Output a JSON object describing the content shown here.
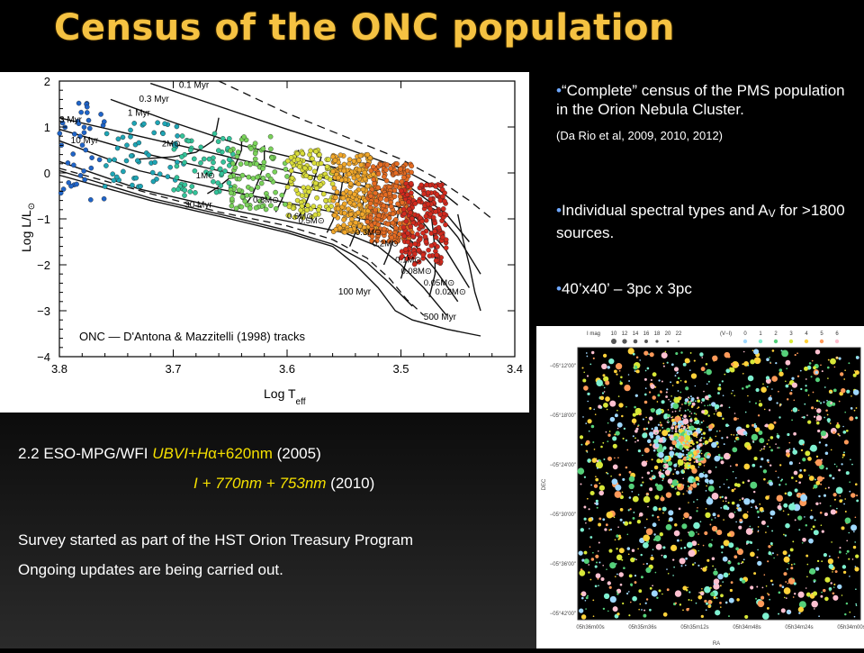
{
  "slide": {
    "title": "Census of the ONC population",
    "bullets": [
      {
        "text": "“Complete” census of the PMS population in the Orion Nebula Cluster.",
        "citation": "(Da Rio et al, 2009, 2010, 2012)"
      },
      {
        "text_pre": "Individual spectral types and A",
        "text_sub": "V",
        "text_post": " for >1800 sources."
      },
      {
        "text": "40’x40’ – 3pc x 3pc"
      }
    ],
    "obs_line1_pre": "2.2 ESO-MPG/WFI ",
    "obs_line1_bands": "UBVI+H",
    "obs_line1_alpha": "α",
    "obs_line1_filter": "+620nm",
    "obs_line1_year": "   (2005)",
    "obs_line2_bands": "I + 770nm + 753nm",
    "obs_line2_year": " (2010)",
    "survey_line1": "Survey started as part of the HST Orion Treasury Program",
    "survey_line2": "Ongoing updates are being carried out."
  },
  "chart_data": [
    {
      "type": "scatter",
      "title": "",
      "xlabel": "Log T",
      "xlabel_sub": "eff",
      "ylabel_pre": "Log L/L",
      "ylabel_sun": "⊙",
      "xlim": [
        3.8,
        3.4
      ],
      "ylim": [
        -4,
        2
      ],
      "xticks": [
        "3.8",
        "3.7",
        "3.6",
        "3.5",
        "3.4"
      ],
      "yticks": [
        "2",
        "1",
        "0",
        "−1",
        "−2",
        "−3",
        "−4"
      ],
      "annotation": "ONC — D'Antona & Mazzitelli (1998) tracks",
      "isochrone_labels": [
        "0.1 Myr",
        "0.3 Myr",
        "1 Myr",
        "3 Myr",
        "10 Myr",
        "30 Myr",
        "100 Myr",
        "500 Myr"
      ],
      "mass_labels": [
        "2M⊙",
        "1M⊙",
        "0.8M⊙",
        "0.6M⊙",
        "0.5M⊙",
        "0.3M⊙",
        "0.2M⊙",
        "0.1M⊙",
        "0.08M⊙",
        "0.05M⊙",
        "0.02M⊙"
      ],
      "isochrones": [
        {
          "name": "0.1 Myr",
          "points": [
            [
              3.72,
              1.95
            ],
            [
              3.66,
              1.45
            ],
            [
              3.6,
              0.95
            ],
            [
              3.55,
              0.55
            ],
            [
              3.5,
              0.1
            ],
            [
              3.47,
              -0.3
            ],
            [
              3.45,
              -0.7
            ]
          ]
        },
        {
          "name": "0.3 Myr",
          "points": [
            [
              3.755,
              1.6
            ],
            [
              3.7,
              1.1
            ],
            [
              3.64,
              0.6
            ],
            [
              3.58,
              0.25
            ],
            [
              3.53,
              -0.05
            ],
            [
              3.49,
              -0.35
            ],
            [
              3.46,
              -0.9
            ],
            [
              3.44,
              -1.5
            ]
          ]
        },
        {
          "name": "1 Myr",
          "points": [
            [
              3.8,
              1.2
            ],
            [
              3.73,
              0.8
            ],
            [
              3.66,
              0.4
            ],
            [
              3.6,
              0.05
            ],
            [
              3.55,
              -0.2
            ],
            [
              3.5,
              -0.45
            ],
            [
              3.47,
              -0.8
            ],
            [
              3.45,
              -1.4
            ],
            [
              3.43,
              -2.2
            ]
          ]
        },
        {
          "name": "3 Myr",
          "points": [
            [
              3.8,
              0.95
            ],
            [
              3.73,
              0.45
            ],
            [
              3.66,
              0.05
            ],
            [
              3.6,
              -0.25
            ],
            [
              3.55,
              -0.5
            ],
            [
              3.5,
              -0.75
            ],
            [
              3.48,
              -1.1
            ],
            [
              3.46,
              -1.7
            ],
            [
              3.44,
              -2.5
            ]
          ]
        },
        {
          "name": "10 Myr",
          "points": [
            [
              3.8,
              0.7
            ],
            [
              3.73,
              0.05
            ],
            [
              3.66,
              -0.35
            ],
            [
              3.6,
              -0.65
            ],
            [
              3.55,
              -0.9
            ],
            [
              3.51,
              -1.15
            ],
            [
              3.49,
              -1.5
            ],
            [
              3.47,
              -2.1
            ],
            [
              3.45,
              -2.8
            ]
          ]
        },
        {
          "name": "30 Myr",
          "points": [
            [
              3.8,
              0.25
            ],
            [
              3.73,
              -0.35
            ],
            [
              3.66,
              -0.75
            ],
            [
              3.6,
              -1.05
            ],
            [
              3.55,
              -1.3
            ],
            [
              3.52,
              -1.6
            ],
            [
              3.5,
              -2.0
            ],
            [
              3.48,
              -2.5
            ],
            [
              3.46,
              -3.1
            ]
          ]
        },
        {
          "name": "100 Myr",
          "points": [
            [
              3.8,
              0.05
            ],
            [
              3.72,
              -0.55
            ],
            [
              3.65,
              -0.95
            ],
            [
              3.6,
              -1.25
            ],
            [
              3.56,
              -1.55
            ],
            [
              3.53,
              -1.95
            ],
            [
              3.51,
              -2.4
            ],
            [
              3.49,
              -2.9
            ]
          ]
        },
        {
          "name": "500 Myr",
          "points": [
            [
              3.8,
              -0.05
            ],
            [
              3.72,
              -0.6
            ],
            [
              3.65,
              -1.0
            ],
            [
              3.6,
              -1.3
            ],
            [
              3.56,
              -1.6
            ],
            [
              3.54,
              -2.0
            ],
            [
              3.52,
              -2.5
            ],
            [
              3.505,
              -3.0
            ],
            [
              3.49,
              -3.2
            ],
            [
              3.46,
              -3.4
            ],
            [
              3.43,
              -3.55
            ]
          ]
        }
      ],
      "tracks": [
        {
          "mass": "2M⊙",
          "points": [
            [
              3.66,
              1.2
            ],
            [
              3.662,
              0.95
            ],
            [
              3.665,
              0.7
            ],
            [
              3.68,
              0.45
            ],
            [
              3.7,
              0.35
            ],
            [
              3.73,
              0.3
            ]
          ]
        },
        {
          "mass": "1M⊙",
          "points": [
            [
              3.64,
              0.8
            ],
            [
              3.64,
              0.5
            ],
            [
              3.645,
              0.2
            ],
            [
              3.65,
              -0.1
            ],
            [
              3.66,
              -0.3
            ],
            [
              3.67,
              -0.45
            ]
          ]
        },
        {
          "mass": "0.8M⊙",
          "points": [
            [
              3.62,
              0.6
            ],
            [
              3.62,
              0.2
            ],
            [
              3.625,
              -0.15
            ],
            [
              3.63,
              -0.45
            ],
            [
              3.635,
              -0.65
            ]
          ]
        },
        {
          "mass": "0.6M⊙",
          "points": [
            [
              3.59,
              0.5
            ],
            [
              3.595,
              0.1
            ],
            [
              3.6,
              -0.3
            ],
            [
              3.605,
              -0.6
            ],
            [
              3.61,
              -0.85
            ]
          ]
        },
        {
          "mass": "0.5M⊙",
          "points": [
            [
              3.57,
              0.35
            ],
            [
              3.575,
              -0.05
            ],
            [
              3.58,
              -0.45
            ],
            [
              3.585,
              -0.75
            ],
            [
              3.59,
              -0.95
            ]
          ]
        },
        {
          "mass": "0.3M⊙",
          "points": [
            [
              3.55,
              0.1
            ],
            [
              3.552,
              -0.3
            ],
            [
              3.555,
              -0.7
            ],
            [
              3.56,
              -1.05
            ],
            [
              3.565,
              -1.3
            ]
          ]
        },
        {
          "mass": "0.2M⊙",
          "points": [
            [
              3.53,
              -0.05
            ],
            [
              3.532,
              -0.5
            ],
            [
              3.535,
              -0.9
            ],
            [
              3.54,
              -1.3
            ],
            [
              3.545,
              -1.6
            ]
          ]
        },
        {
          "mass": "0.1M⊙",
          "points": [
            [
              3.5,
              -0.3
            ],
            [
              3.502,
              -0.8
            ],
            [
              3.505,
              -1.3
            ],
            [
              3.51,
              -1.7
            ],
            [
              3.515,
              -2.0
            ]
          ]
        },
        {
          "mass": "0.08M⊙",
          "points": [
            [
              3.49,
              -0.45
            ],
            [
              3.49,
              -1.0
            ],
            [
              3.492,
              -1.5
            ],
            [
              3.495,
              -1.9
            ],
            [
              3.5,
              -2.3
            ]
          ]
        },
        {
          "mass": "0.05M⊙",
          "points": [
            [
              3.475,
              -0.6
            ],
            [
              3.472,
              -1.2
            ],
            [
              3.47,
              -1.7
            ],
            [
              3.47,
              -2.2
            ],
            [
              3.475,
              -2.7
            ]
          ]
        },
        {
          "mass": "0.02M⊙",
          "points": [
            [
              3.45,
              -0.9
            ],
            [
              3.445,
              -1.5
            ],
            [
              3.44,
              -2.0
            ],
            [
              3.435,
              -2.6
            ],
            [
              3.43,
              -3.0
            ]
          ]
        }
      ],
      "zams_dashed": [
        [
          3.8,
          0.1
        ],
        [
          3.72,
          -0.45
        ],
        [
          3.66,
          -0.85
        ],
        [
          3.6,
          -1.15
        ],
        [
          3.56,
          -1.45
        ],
        [
          3.53,
          -1.85
        ],
        [
          3.51,
          -2.3
        ],
        [
          3.495,
          -2.75
        ],
        [
          3.48,
          -3.1
        ]
      ],
      "birthline_dashed": [
        [
          3.66,
          2.0
        ],
        [
          3.6,
          1.3
        ],
        [
          3.55,
          0.8
        ],
        [
          3.5,
          0.3
        ],
        [
          3.47,
          -0.1
        ],
        [
          3.44,
          -0.6
        ],
        [
          3.42,
          -1.0
        ]
      ],
      "point_groups": [
        {
          "name": "blue",
          "color": "#1f64c8",
          "xrange": [
            3.76,
            3.8
          ],
          "yrange": [
            -0.6,
            1.6
          ],
          "n": 40
        },
        {
          "name": "cyan",
          "color": "#1ea5b5",
          "xrange": [
            3.69,
            3.76
          ],
          "yrange": [
            -0.3,
            1.2
          ],
          "n": 55
        },
        {
          "name": "teal",
          "color": "#33c49a",
          "xrange": [
            3.64,
            3.7
          ],
          "yrange": [
            -0.5,
            0.9
          ],
          "n": 60
        },
        {
          "name": "green",
          "color": "#7ad35a",
          "xrange": [
            3.6,
            3.65
          ],
          "yrange": [
            -0.8,
            0.8
          ],
          "n": 90
        },
        {
          "name": "yellow",
          "color": "#d9dd3a",
          "xrange": [
            3.56,
            3.6
          ],
          "yrange": [
            -1.0,
            0.5
          ],
          "n": 120
        },
        {
          "name": "orange",
          "color": "#f1a72a",
          "xrange": [
            3.52,
            3.56
          ],
          "yrange": [
            -1.3,
            0.4
          ],
          "n": 260
        },
        {
          "name": "dark-orange",
          "color": "#e66c22",
          "xrange": [
            3.49,
            3.53
          ],
          "yrange": [
            -1.5,
            0.2
          ],
          "n": 260
        },
        {
          "name": "red",
          "color": "#d22a1e",
          "xrange": [
            3.46,
            3.5
          ],
          "yrange": [
            -2.0,
            -0.2
          ],
          "n": 200
        }
      ]
    },
    {
      "type": "scatter",
      "title": "",
      "xlabel": "RA",
      "ylabel": "DEC",
      "ra_ticks": [
        "05h36m00s",
        "05h35m36s",
        "05h35m12s",
        "05h34m48s",
        "05h34m24s",
        "05h34m00s"
      ],
      "dec_ticks": [
        "−05°12'00\"",
        "−05°18'00\"",
        "−05°24'00\"",
        "−05°30'00\"",
        "−05°36'00\"",
        "−05°42'00\""
      ],
      "legend_imag_label": "I mag",
      "legend_imag_values": [
        "10",
        "12",
        "14",
        "16",
        "18",
        "20",
        "22"
      ],
      "legend_color_label": "(V−I)",
      "legend_color_values": [
        "0",
        "1",
        "2",
        "3",
        "4",
        "5",
        "6"
      ],
      "legend_colors": [
        "#9fd8ff",
        "#7ef0d0",
        "#55d07a",
        "#d8e838",
        "#ffd23a",
        "#ff9a5a",
        "#ffc0d0"
      ],
      "star_count": 1800,
      "cluster_center_fraction": [
        0.38,
        0.33
      ]
    }
  ]
}
